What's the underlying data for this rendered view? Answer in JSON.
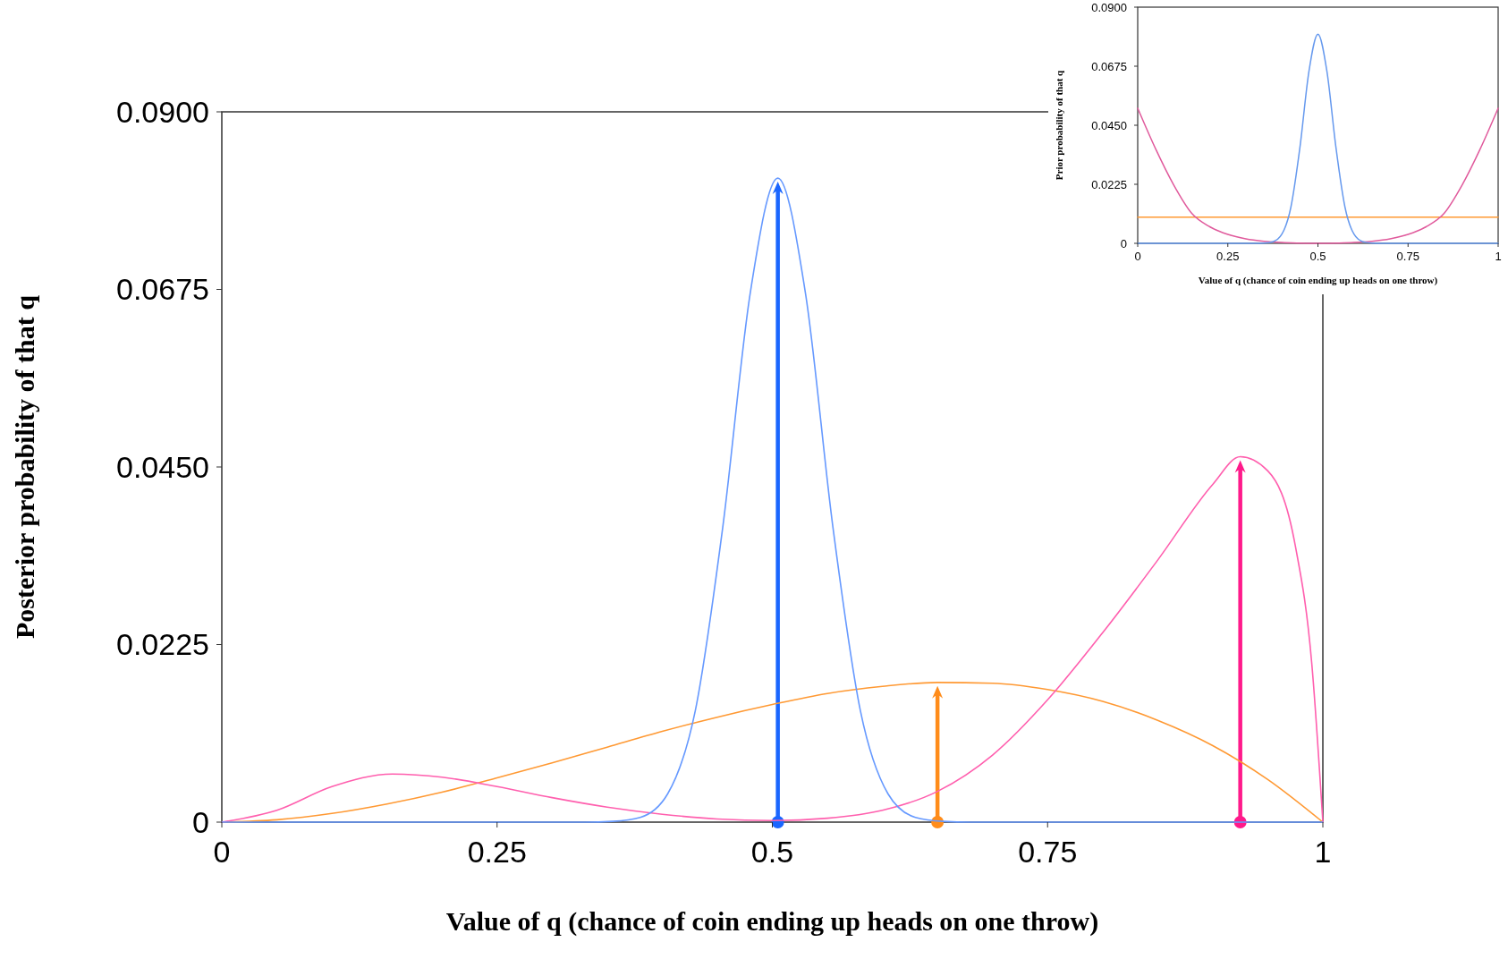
{
  "chart_data": [
    {
      "type": "line",
      "xlabel": "Value of q (chance of coin ending up heads on one throw)",
      "ylabel": "Posterior probability of that q",
      "xlim": [
        0,
        1
      ],
      "ylim": [
        0,
        0.09
      ],
      "xticks": [
        0,
        0.25,
        0.5,
        0.75,
        1
      ],
      "yticks": [
        0,
        {
          "value": 0.0225,
          "label": "0.0225"
        },
        {
          "value": 0.045,
          "label": "0.0450"
        },
        {
          "value": 0.0675,
          "label": "0.0675"
        },
        {
          "value": 0.09,
          "label": "0.0900"
        }
      ],
      "grid": false,
      "series": [
        {
          "color": "#ff9933",
          "x": [
            0,
            0.05,
            0.1,
            0.15,
            0.2,
            0.25,
            0.3,
            0.35,
            0.4,
            0.45,
            0.5,
            0.55,
            0.6,
            0.65,
            0.7,
            0.75,
            0.8,
            0.85,
            0.9,
            0.95,
            1
          ],
          "values": [
            0,
            0.0003,
            0.0011,
            0.0023,
            0.0038,
            0.0056,
            0.0075,
            0.0095,
            0.0115,
            0.0133,
            0.0149,
            0.0163,
            0.0172,
            0.0177,
            0.0176,
            0.0168,
            0.0153,
            0.0129,
            0.0097,
            0.0054,
            0
          ]
        },
        {
          "color": "#ff5fae",
          "x": [
            0,
            0.05,
            0.1,
            0.155,
            0.2,
            0.25,
            0.3,
            0.35,
            0.4,
            0.45,
            0.5,
            0.55,
            0.6,
            0.65,
            0.7,
            0.75,
            0.8,
            0.85,
            0.9,
            0.925,
            0.95,
            0.975,
            0.99,
            1
          ],
          "values": [
            0,
            0.0015,
            0.0045,
            0.0061,
            0.0057,
            0.0045,
            0.0031,
            0.0019,
            0.001,
            0.0004,
            0.0002,
            0.0005,
            0.0015,
            0.0039,
            0.0085,
            0.0155,
            0.024,
            0.0332,
            0.0428,
            0.0463,
            0.0445,
            0.035,
            0.02,
            0
          ]
        },
        {
          "color": "#6699ff",
          "x": [
            0,
            0.33,
            0.355,
            0.38,
            0.405,
            0.43,
            0.455,
            0.48,
            0.505,
            0.53,
            0.555,
            0.58,
            0.605,
            0.63,
            0.655,
            0.68,
            1
          ],
          "values": [
            0,
            0,
            0.0001,
            0.0006,
            0.0036,
            0.0141,
            0.0374,
            0.0671,
            0.0816,
            0.0671,
            0.0374,
            0.0141,
            0.0036,
            0.0006,
            0.0001,
            0,
            0
          ]
        }
      ]
    },
    {
      "type": "line",
      "xlabel": "Value of q (chance of coin ending up heads on one throw)",
      "ylabel": "Prior probability of that q",
      "xlim": [
        0,
        1
      ],
      "ylim": [
        0,
        0.09
      ],
      "xticks": [
        0,
        0.25,
        0.5,
        0.75,
        1
      ],
      "yticks": [
        0,
        {
          "value": 0.0225,
          "label": "0.0225"
        },
        {
          "value": 0.045,
          "label": "0.0450"
        },
        {
          "value": 0.0675,
          "label": "0.0675"
        },
        {
          "value": 0.09,
          "label": "0.0900"
        }
      ],
      "grid": false,
      "series": [
        {
          "color": "#ff9933",
          "x": [
            0,
            1
          ],
          "values": [
            0.01,
            0.01
          ]
        },
        {
          "color": "#e05a9c",
          "x": [
            0,
            0.05,
            0.1,
            0.15,
            0.2,
            0.25,
            0.3,
            0.35,
            0.4,
            0.45,
            0.5,
            0.55,
            0.6,
            0.65,
            0.7,
            0.75,
            0.8,
            0.85,
            0.9,
            0.95,
            1
          ],
          "values": [
            0.0515,
            0.0359,
            0.0222,
            0.0114,
            0.0063,
            0.0034,
            0.0017,
            0.0008,
            0.0003,
            0.0001,
            0,
            0.0001,
            0.0003,
            0.0008,
            0.0017,
            0.0034,
            0.0063,
            0.0114,
            0.0222,
            0.0359,
            0.0515
          ]
        },
        {
          "color": "#6699ee",
          "x": [
            0,
            0.325,
            0.35,
            0.375,
            0.4,
            0.425,
            0.45,
            0.475,
            0.5,
            0.525,
            0.55,
            0.575,
            0.6,
            0.625,
            0.65,
            0.675,
            1
          ],
          "values": [
            0,
            0,
            0.0001,
            0.0006,
            0.0035,
            0.0138,
            0.0365,
            0.0655,
            0.0797,
            0.0655,
            0.0365,
            0.0138,
            0.0035,
            0.0006,
            0.0001,
            0,
            0
          ]
        }
      ]
    }
  ]
}
